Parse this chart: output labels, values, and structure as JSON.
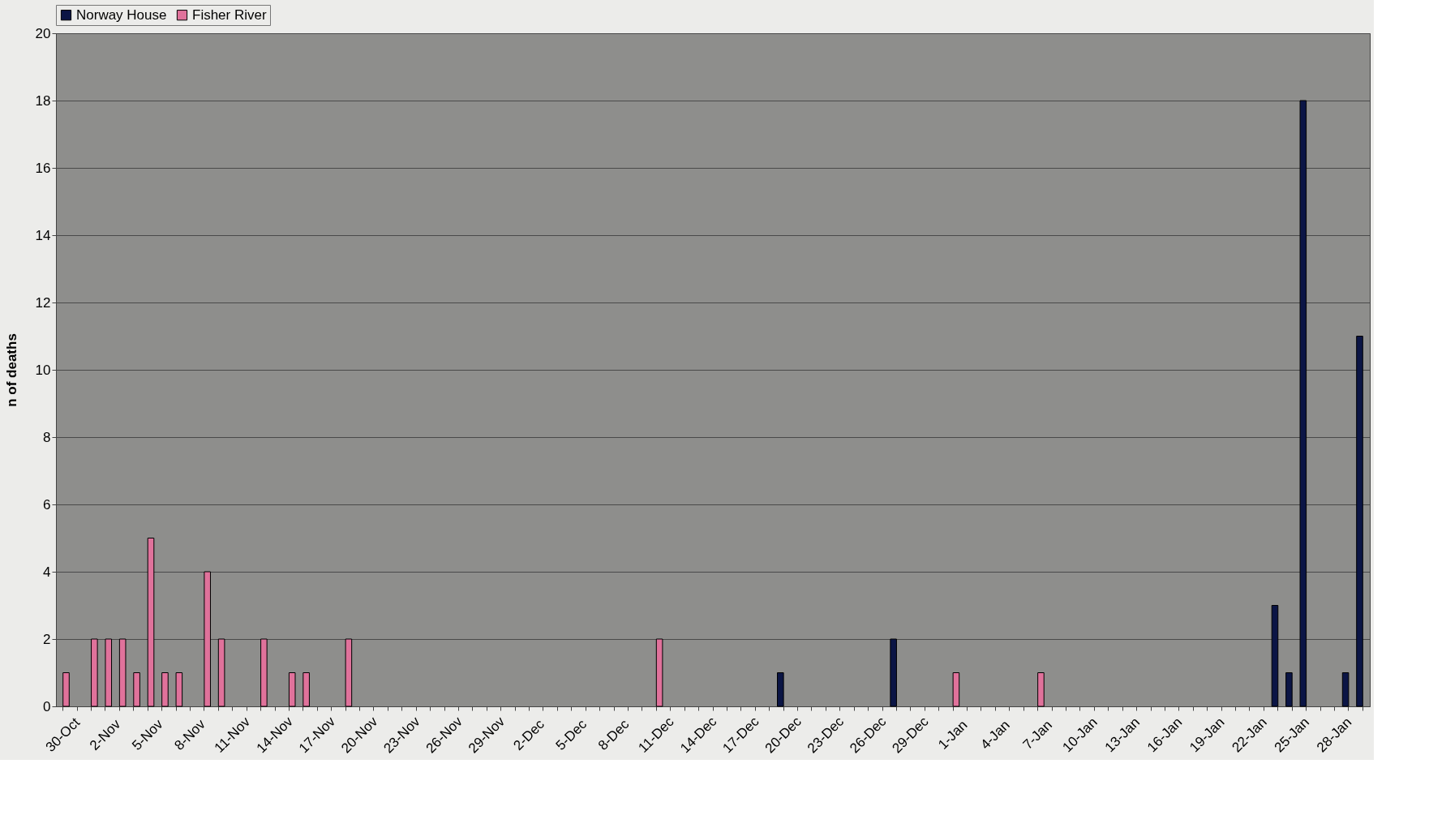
{
  "chart_data": {
    "type": "bar",
    "ylabel": "n of deaths",
    "categories": [
      "30-Oct",
      null,
      null,
      "2-Nov",
      null,
      null,
      "5-Nov",
      null,
      null,
      "8-Nov",
      null,
      null,
      "11-Nov",
      null,
      null,
      "14-Nov",
      null,
      null,
      "17-Nov",
      null,
      null,
      "20-Nov",
      null,
      null,
      "23-Nov",
      null,
      null,
      "26-Nov",
      null,
      null,
      "29-Nov",
      null,
      null,
      "2-Dec",
      null,
      null,
      "5-Dec",
      null,
      null,
      "8-Dec",
      null,
      null,
      "11-Dec",
      null,
      null,
      "14-Dec",
      null,
      null,
      "17-Dec",
      null,
      null,
      "20-Dec",
      null,
      null,
      "23-Dec",
      null,
      null,
      "26-Dec",
      null,
      null,
      "29-Dec",
      null,
      null,
      "1-Jan",
      null,
      null,
      "4-Jan",
      null,
      null,
      "7-Jan",
      null,
      null,
      "10-Jan",
      null,
      null,
      "13-Jan",
      null,
      null,
      "16-Jan",
      null,
      null,
      "19-Jan",
      null,
      null,
      "22-Jan",
      null,
      null,
      "25-Jan",
      null,
      null,
      "28-Jan",
      null,
      null
    ],
    "series": [
      {
        "name": "Norway House",
        "color": "#0b1545",
        "values": [
          0,
          0,
          0,
          0,
          0,
          0,
          0,
          0,
          0,
          0,
          0,
          0,
          0,
          0,
          0,
          0,
          0,
          0,
          0,
          0,
          0,
          0,
          0,
          0,
          0,
          0,
          0,
          0,
          0,
          0,
          0,
          0,
          0,
          0,
          0,
          0,
          0,
          0,
          0,
          0,
          0,
          0,
          0,
          0,
          0,
          0,
          0,
          0,
          0,
          0,
          0,
          1,
          0,
          0,
          0,
          0,
          0,
          0,
          0,
          2,
          0,
          0,
          0,
          0,
          0,
          0,
          0,
          0,
          0,
          0,
          0,
          0,
          0,
          0,
          0,
          0,
          0,
          0,
          0,
          0,
          0,
          0,
          0,
          0,
          0,
          0,
          3,
          1,
          18,
          0,
          0,
          1,
          11
        ]
      },
      {
        "name": "Fisher River",
        "color": "#e0729b",
        "values": [
          1,
          0,
          2,
          2,
          2,
          1,
          5,
          1,
          1,
          0,
          4,
          2,
          0,
          0,
          2,
          0,
          1,
          1,
          0,
          0,
          2,
          0,
          0,
          0,
          0,
          0,
          0,
          0,
          0,
          0,
          0,
          0,
          0,
          0,
          0,
          0,
          0,
          0,
          0,
          0,
          0,
          0,
          2,
          0,
          0,
          0,
          0,
          0,
          0,
          0,
          0,
          0,
          0,
          0,
          0,
          0,
          0,
          0,
          0,
          0,
          0,
          0,
          0,
          1,
          0,
          0,
          0,
          0,
          0,
          1,
          0,
          0,
          0,
          0,
          0,
          0,
          0,
          0,
          0,
          0,
          0,
          0,
          0,
          0,
          0,
          0,
          0,
          0,
          0,
          0,
          0,
          0,
          0
        ]
      }
    ],
    "ylim": [
      0,
      20
    ],
    "yticks": [
      0,
      2,
      4,
      6,
      8,
      10,
      12,
      14,
      16,
      18,
      20
    ],
    "grid": "y",
    "legend": "top"
  }
}
